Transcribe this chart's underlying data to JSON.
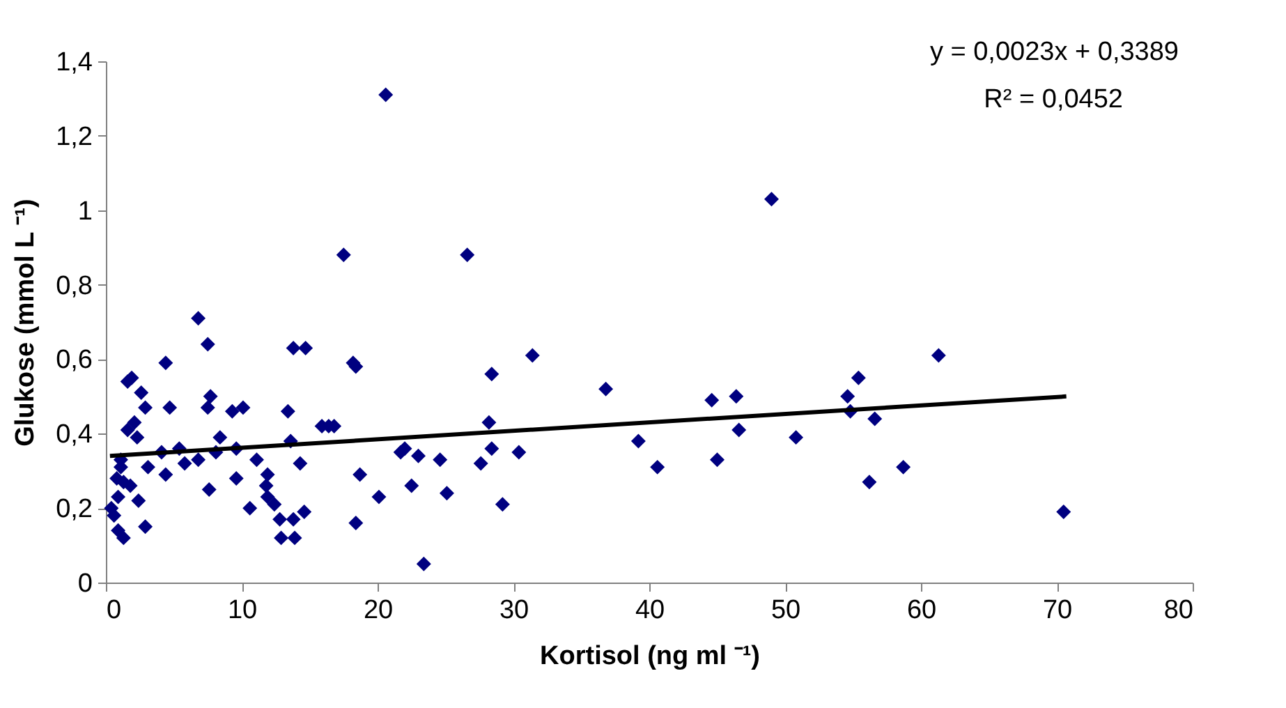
{
  "chart_data": {
    "type": "scatter",
    "xlabel": "Kortisol (ng ml ⁻¹)",
    "ylabel": "Glukose (mmol L ⁻¹)",
    "xlim": [
      0,
      80
    ],
    "xticks": [
      0,
      10,
      20,
      30,
      40,
      50,
      60,
      70,
      80
    ],
    "ylim": [
      0,
      1.4
    ],
    "yticks": [
      {
        "value": 0,
        "label": "0"
      },
      {
        "value": 0.2,
        "label": "0,2"
      },
      {
        "value": 0.4,
        "label": "0,4"
      },
      {
        "value": 0.6,
        "label": "0,6"
      },
      {
        "value": 0.8,
        "label": "0,8"
      },
      {
        "value": 1,
        "label": "1"
      },
      {
        "value": 1.2,
        "label": "1,2"
      },
      {
        "value": 1.4,
        "label": "1,4"
      }
    ],
    "grid": false,
    "legend": false,
    "annotations": [
      "y = 0,0023x + 0,3389",
      "R² = 0,0452"
    ],
    "series": [
      {
        "type": "scatter",
        "marker": "diamond",
        "color": "#000080",
        "x": [
          6.8,
          7.5,
          4.4,
          1.6,
          1.9,
          2.6,
          2.9,
          4.7,
          7.7,
          7.5,
          9.3,
          10.1,
          13.4,
          13.8,
          14.7,
          2.1,
          1.6,
          2.3,
          8.4,
          4.1,
          5.4,
          9.6,
          13.6,
          15.9,
          8.1,
          11.1,
          5.8,
          6.8,
          3.1,
          1.1,
          4.4,
          14.3,
          9.6,
          11.9,
          1.3,
          1.8,
          0.8,
          7.6,
          11.8,
          2.4,
          0.9,
          11.9,
          10.6,
          12.4,
          14.6,
          12.8,
          13.8,
          0.6,
          0.9,
          1.3,
          2.9,
          12.9,
          13.9,
          0.4,
          1.1,
          20.6,
          17.5,
          26.6,
          18.2,
          18.4,
          28.4,
          31.4,
          16.4,
          16.8,
          28.2,
          21.7,
          22.0,
          23.0,
          24.6,
          27.6,
          28.4,
          30.4,
          18.7,
          20.1,
          22.5,
          25.1,
          29.2,
          18.4,
          23.4,
          49.0,
          36.8,
          61.3,
          55.4,
          54.6,
          54.8,
          44.6,
          46.4,
          46.6,
          56.6,
          50.8,
          39.2,
          40.6,
          45.0,
          58.7,
          56.2,
          70.5
        ],
        "values": [
          0.71,
          0.64,
          0.59,
          0.54,
          0.55,
          0.51,
          0.47,
          0.47,
          0.5,
          0.47,
          0.46,
          0.47,
          0.46,
          0.63,
          0.63,
          0.43,
          0.41,
          0.39,
          0.39,
          0.35,
          0.36,
          0.36,
          0.38,
          0.42,
          0.35,
          0.33,
          0.32,
          0.33,
          0.31,
          0.31,
          0.29,
          0.32,
          0.28,
          0.29,
          0.27,
          0.26,
          0.28,
          0.25,
          0.26,
          0.22,
          0.23,
          0.23,
          0.2,
          0.21,
          0.19,
          0.17,
          0.17,
          0.18,
          0.14,
          0.12,
          0.15,
          0.12,
          0.12,
          0.2,
          0.33,
          1.31,
          0.88,
          0.88,
          0.59,
          0.58,
          0.56,
          0.61,
          0.42,
          0.42,
          0.43,
          0.35,
          0.36,
          0.34,
          0.33,
          0.32,
          0.36,
          0.35,
          0.29,
          0.23,
          0.26,
          0.24,
          0.21,
          0.16,
          0.05,
          1.03,
          0.52,
          0.61,
          0.55,
          0.5,
          0.46,
          0.49,
          0.5,
          0.41,
          0.44,
          0.39,
          0.38,
          0.31,
          0.33,
          0.31,
          0.27,
          0.19
        ]
      },
      {
        "type": "line",
        "color": "#000000",
        "line_style": "solid",
        "x": [
          0.3,
          70.7
        ],
        "values": [
          0.34,
          0.5
        ]
      }
    ]
  }
}
